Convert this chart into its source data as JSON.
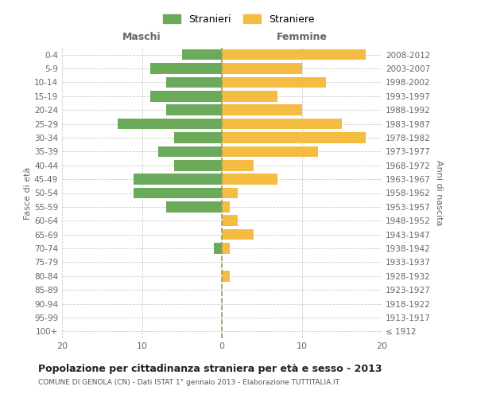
{
  "age_groups": [
    "100+",
    "95-99",
    "90-94",
    "85-89",
    "80-84",
    "75-79",
    "70-74",
    "65-69",
    "60-64",
    "55-59",
    "50-54",
    "45-49",
    "40-44",
    "35-39",
    "30-34",
    "25-29",
    "20-24",
    "15-19",
    "10-14",
    "5-9",
    "0-4"
  ],
  "birth_years": [
    "≤ 1912",
    "1913-1917",
    "1918-1922",
    "1923-1927",
    "1928-1932",
    "1933-1937",
    "1938-1942",
    "1943-1947",
    "1948-1952",
    "1953-1957",
    "1958-1962",
    "1963-1967",
    "1968-1972",
    "1973-1977",
    "1978-1982",
    "1983-1987",
    "1988-1992",
    "1993-1997",
    "1998-2002",
    "2003-2007",
    "2008-2012"
  ],
  "maschi": [
    0,
    0,
    0,
    0,
    0,
    0,
    1,
    0,
    0,
    7,
    11,
    11,
    6,
    8,
    6,
    13,
    7,
    9,
    7,
    9,
    5
  ],
  "femmine": [
    0,
    0,
    0,
    0,
    1,
    0,
    1,
    4,
    2,
    1,
    2,
    7,
    4,
    12,
    18,
    15,
    10,
    7,
    13,
    10,
    18
  ],
  "maschi_color": "#6aaa5a",
  "femmine_color": "#f5bc42",
  "grid_color": "#cccccc",
  "center_line_color": "#999966",
  "title": "Popolazione per cittadinanza straniera per età e sesso - 2013",
  "subtitle": "COMUNE DI GENOLA (CN) - Dati ISTAT 1° gennaio 2013 - Elaborazione TUTTITALIA.IT",
  "ylabel_left": "Fasce di età",
  "ylabel_right": "Anni di nascita",
  "xlabel_left": "Maschi",
  "xlabel_right": "Femmine",
  "legend_stranieri": "Stranieri",
  "legend_straniere": "Straniere",
  "xlim": 20,
  "xtick_labels": [
    "20",
    "10",
    "0",
    "10",
    "20"
  ],
  "xtick_vals": [
    -20,
    -10,
    0,
    10,
    20
  ]
}
